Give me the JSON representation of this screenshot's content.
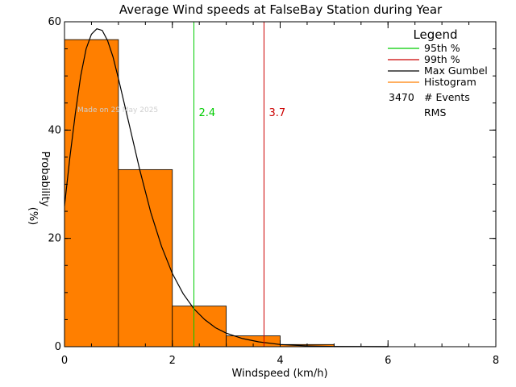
{
  "chart_data": {
    "type": "bar",
    "title": "Average Wind speeds at FalseBay Station during Year",
    "xlabel": "Windspeed (km/h)",
    "ylabel": "Probability",
    "ylabel_unit": "(%)",
    "xlim": [
      0,
      8
    ],
    "ylim": [
      0,
      60
    ],
    "xticks": [
      "0",
      "2",
      "4",
      "6",
      "8"
    ],
    "yticks": [
      "0",
      "20",
      "40",
      "60"
    ],
    "bar_color": "#ff7f00",
    "histogram": {
      "bin_edges": [
        0,
        1,
        2,
        3,
        4,
        5,
        6
      ],
      "values": [
        56.7,
        32.7,
        7.5,
        2.0,
        0.4,
        0.05
      ]
    },
    "gumbel_curve": {
      "x": [
        0,
        0.1,
        0.2,
        0.3,
        0.4,
        0.5,
        0.6,
        0.7,
        0.8,
        0.9,
        1.0,
        1.2,
        1.4,
        1.6,
        1.8,
        2.0,
        2.2,
        2.4,
        2.6,
        2.8,
        3.0,
        3.3,
        3.6,
        4.0,
        4.5,
        5.0,
        5.5,
        6.0
      ],
      "y": [
        26,
        35,
        43,
        50,
        55,
        57.7,
        58.7,
        58.4,
        56.5,
        53.5,
        49.5,
        41,
        32.5,
        24.8,
        18.5,
        13.5,
        9.8,
        7.0,
        5.0,
        3.5,
        2.5,
        1.5,
        0.9,
        0.4,
        0.15,
        0.05,
        0.02,
        0.0
      ]
    },
    "percentile_lines": [
      {
        "label": "2.4",
        "x": 2.4,
        "color": "#00cc00"
      },
      {
        "label": "3.7",
        "x": 3.7,
        "color": "#cc0000"
      }
    ],
    "legend": {
      "title": "Legend",
      "placement": "top-right",
      "items": [
        {
          "label": "95th %",
          "color": "#00cc00"
        },
        {
          "label": "99th %",
          "color": "#cc0000"
        },
        {
          "label": "Max Gumbel",
          "color": "#000000"
        },
        {
          "label": "Histogram",
          "color": "#ff7f00"
        }
      ],
      "events_count": "3470",
      "events_label": "# Events",
      "rms_label": "RMS"
    },
    "watermark": "Made on 29 May 2025"
  }
}
